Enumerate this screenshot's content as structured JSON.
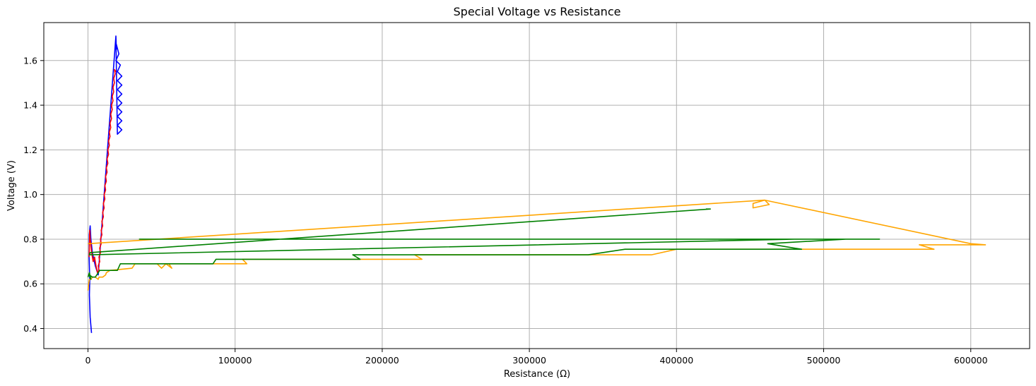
{
  "chart_data": {
    "type": "line",
    "title": "Special Voltage vs Resistance",
    "xlabel": "Resistance (Ω)",
    "ylabel": "Voltage (V)",
    "xlim": [
      -30000,
      640000
    ],
    "ylim": [
      0.31,
      1.77
    ],
    "xticks": [
      0,
      100000,
      200000,
      300000,
      400000,
      500000,
      600000
    ],
    "yticks": [
      0.4,
      0.6,
      0.8,
      1.0,
      1.2,
      1.4,
      1.6
    ],
    "ytick_labels": [
      "0.4",
      "0.6",
      "0.8",
      "1.0",
      "1.2",
      "1.4",
      "1.6"
    ],
    "grid": true,
    "legend": "none",
    "colors": {
      "blue": "#0000ff",
      "red": "#ff0000",
      "orange": "#ffa500",
      "green": "#008000"
    },
    "series": [
      {
        "color": "blue",
        "x": [
          2400,
          1500,
          1000,
          1200,
          800,
          900,
          1500,
          2000,
          3000,
          5000,
          7000,
          19000,
          19300,
          19000,
          21000,
          19000,
          22000,
          20000,
          23000,
          20000,
          23000,
          20000,
          23000,
          20000,
          23000,
          20000,
          23000,
          20000,
          23000,
          20000,
          23000,
          20000,
          19000
        ],
        "y": [
          0.38,
          0.45,
          0.55,
          0.62,
          0.72,
          0.82,
          0.86,
          0.8,
          0.74,
          0.68,
          0.64,
          1.71,
          1.65,
          1.68,
          1.63,
          1.6,
          1.58,
          1.55,
          1.53,
          1.51,
          1.49,
          1.47,
          1.45,
          1.43,
          1.41,
          1.39,
          1.37,
          1.35,
          1.33,
          1.31,
          1.29,
          1.27,
          1.71
        ]
      },
      {
        "color": "red",
        "x": [
          800,
          1200,
          1500,
          2500,
          3500,
          4500,
          5500,
          6500,
          7500,
          7000,
          8000,
          7500,
          8500,
          8000,
          9000,
          8500,
          9500,
          9000,
          10000,
          9500,
          10500,
          10000,
          11000,
          10500,
          11500,
          11000,
          12000,
          11500,
          12500,
          12000,
          13000,
          12500,
          13500,
          13000,
          14000,
          13500,
          14500,
          14000,
          15000,
          14500,
          15500,
          15000,
          16000,
          15500,
          16500,
          16000,
          17000,
          16500,
          17500,
          17000,
          18000,
          17500,
          18500,
          18000,
          19000
        ],
        "y": [
          0.72,
          0.84,
          0.8,
          0.74,
          0.7,
          0.72,
          0.68,
          0.65,
          0.66,
          0.68,
          0.7,
          0.72,
          0.74,
          0.76,
          0.78,
          0.8,
          0.82,
          0.84,
          0.86,
          0.88,
          0.9,
          0.92,
          0.94,
          0.96,
          0.98,
          1.0,
          1.02,
          1.04,
          1.06,
          1.08,
          1.1,
          1.12,
          1.14,
          1.16,
          1.18,
          1.2,
          1.22,
          1.24,
          1.26,
          1.28,
          1.3,
          1.32,
          1.34,
          1.36,
          1.38,
          1.4,
          1.42,
          1.44,
          1.46,
          1.48,
          1.5,
          1.52,
          1.54,
          1.56,
          1.55
        ]
      },
      {
        "color": "orange",
        "x": [
          0,
          500,
          1000,
          2000,
          3000,
          5000,
          7000,
          7500,
          10000,
          12000,
          12500,
          15000,
          30000,
          32000,
          47000,
          50000,
          53000,
          57000,
          55000,
          85000,
          108000,
          105000,
          180000,
          227000,
          222000,
          340000,
          383000,
          400000,
          482000,
          480000,
          570000,
          575000,
          565000,
          610000,
          600000,
          460000,
          452000,
          452000,
          463000,
          460000,
          0
        ],
        "y": [
          0.57,
          0.6,
          0.62,
          0.62,
          0.63,
          0.63,
          0.62,
          0.63,
          0.63,
          0.64,
          0.65,
          0.66,
          0.67,
          0.69,
          0.69,
          0.67,
          0.69,
          0.67,
          0.69,
          0.69,
          0.69,
          0.71,
          0.71,
          0.71,
          0.73,
          0.73,
          0.73,
          0.755,
          0.755,
          0.755,
          0.755,
          0.755,
          0.775,
          0.775,
          0.78,
          0.975,
          0.96,
          0.94,
          0.955,
          0.975,
          0.78
        ]
      },
      {
        "color": "green",
        "x": [
          0,
          1000,
          2000,
          1000,
          3000,
          5000,
          8000,
          20000,
          22000,
          85000,
          87000,
          185000,
          180000,
          340000,
          365000,
          485000,
          480000,
          462000,
          515000,
          538000,
          36000,
          35000,
          480000,
          1000,
          1500,
          423000,
          420000
        ],
        "y": [
          0.63,
          0.65,
          0.62,
          0.64,
          0.63,
          0.63,
          0.66,
          0.66,
          0.69,
          0.69,
          0.71,
          0.71,
          0.73,
          0.73,
          0.755,
          0.755,
          0.76,
          0.78,
          0.8,
          0.8,
          0.8,
          0.8,
          0.8,
          0.73,
          0.74,
          0.935,
          0.935
        ]
      }
    ]
  }
}
